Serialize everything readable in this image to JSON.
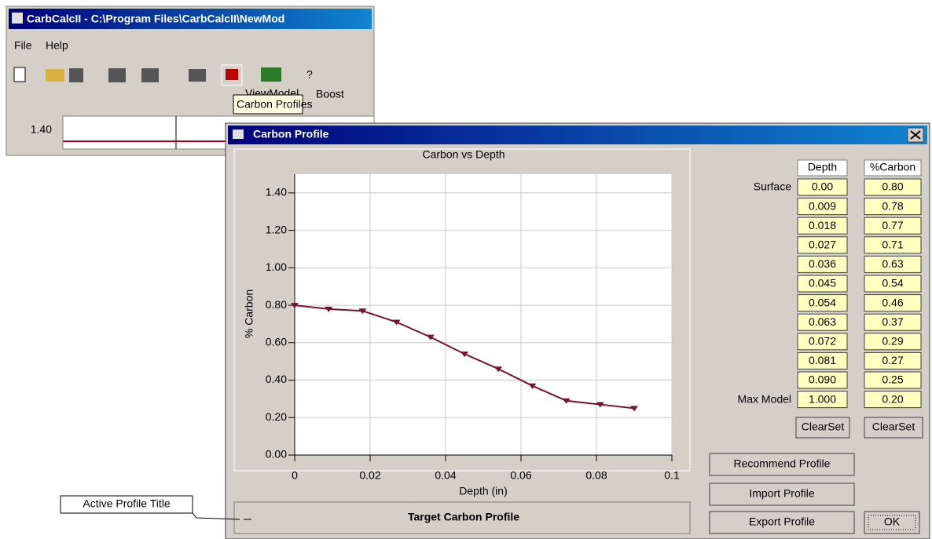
{
  "background_window": {
    "title": "CarbCalcII - C:\\Program Files\\CarbCalcII\\NewMod",
    "menu": [
      "File",
      "Help"
    ],
    "toolbar_labels": [
      "ViewModel",
      "Boost"
    ],
    "tooltip": "Carbon Profiles",
    "axis_label": "1.40"
  },
  "dialog": {
    "title": "Carbon Profile",
    "table": {
      "headers": [
        "Depth",
        "%Carbon"
      ],
      "rows": [
        {
          "label": "Surface",
          "depth": "0.00",
          "carbon": "0.80"
        },
        {
          "depth": "0.009",
          "carbon": "0.78"
        },
        {
          "depth": "0.018",
          "carbon": "0.77"
        },
        {
          "depth": "0.027",
          "carbon": "0.71"
        },
        {
          "depth": "0.036",
          "carbon": "0.63"
        },
        {
          "depth": "0.045",
          "carbon": "0.54"
        },
        {
          "depth": "0.054",
          "carbon": "0.46"
        },
        {
          "depth": "0.063",
          "carbon": "0.37"
        },
        {
          "depth": "0.072",
          "carbon": "0.29"
        },
        {
          "depth": "0.081",
          "carbon": "0.27"
        },
        {
          "depth": "0.090",
          "carbon": "0.25"
        },
        {
          "label": "Max Model",
          "depth": "1.000",
          "carbon": "0.20"
        }
      ]
    },
    "buttons": {
      "clear_depth": "ClearSet",
      "clear_carbon": "ClearSet",
      "recommend": "Recommend Profile",
      "import": "Import Profile",
      "export": "Export Profile",
      "ok": "OK"
    },
    "profile_title": "Target Carbon Profile",
    "callout": "Active Profile Title"
  },
  "chart_data": {
    "type": "line",
    "title": "Carbon vs Depth",
    "x_label": "Depth (in)",
    "y_label": "% Carbon",
    "x": [
      0,
      0.009,
      0.018,
      0.027,
      0.036,
      0.045,
      0.054,
      0.063,
      0.072,
      0.081,
      0.09
    ],
    "values": [
      0.8,
      0.78,
      0.77,
      0.71,
      0.63,
      0.54,
      0.46,
      0.37,
      0.29,
      0.27,
      0.25
    ],
    "color": "#7a1030",
    "grid": true,
    "xlim": [
      0,
      0.1
    ],
    "xticks": [
      0,
      0.02,
      0.04,
      0.06,
      0.08,
      0.1
    ],
    "ylim": [
      0,
      1.5
    ],
    "yticks": [
      {
        "value": 0,
        "label": "0.00"
      },
      {
        "value": 0.2,
        "label": "0.20"
      },
      {
        "value": 0.4,
        "label": "0.40"
      },
      {
        "value": 0.6,
        "label": "0.60"
      },
      {
        "value": 0.8,
        "label": "0.80"
      },
      {
        "value": 1.0,
        "label": "1.00"
      },
      {
        "value": 1.2,
        "label": "1.20"
      },
      {
        "value": 1.4,
        "label": "1.40"
      }
    ]
  }
}
